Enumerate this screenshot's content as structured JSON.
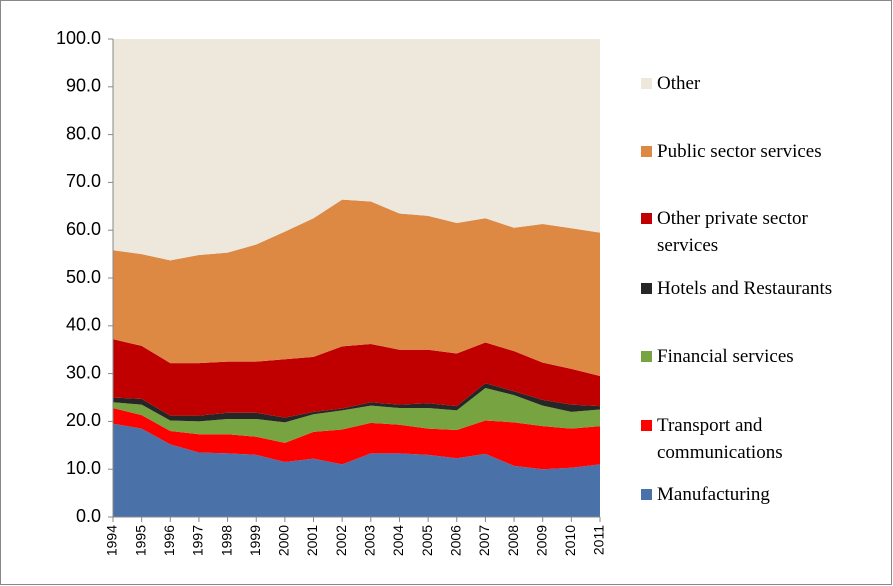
{
  "chart_data": {
    "type": "stacked-area",
    "categories": [
      "1994",
      "1995",
      "1996",
      "1997",
      "1998",
      "1999",
      "2000",
      "2001",
      "2002",
      "2003",
      "2004",
      "2005",
      "2006",
      "2007",
      "2008",
      "2009",
      "2010",
      "2011"
    ],
    "ylim": [
      0,
      100
    ],
    "yticks": [
      {
        "value": 0,
        "label": "0.0"
      },
      {
        "value": 10,
        "label": "10.0"
      },
      {
        "value": 20,
        "label": "20.0"
      },
      {
        "value": 30,
        "label": "30.0"
      },
      {
        "value": 40,
        "label": "40.0"
      },
      {
        "value": 50,
        "label": "50.0"
      },
      {
        "value": 60,
        "label": "60.0"
      },
      {
        "value": 70,
        "label": "70.0"
      },
      {
        "value": 80,
        "label": "80.0"
      },
      {
        "value": 90,
        "label": "90.0"
      },
      {
        "value": 100,
        "label": "100.0"
      }
    ],
    "series": [
      {
        "name": "Manufacturing",
        "color": "#4a72a8",
        "values": [
          19.5,
          18.5,
          15.2,
          13.5,
          13.3,
          13.0,
          11.5,
          12.2,
          11.0,
          13.3,
          13.3,
          13.0,
          12.3,
          13.2,
          10.7,
          10.0,
          10.3,
          11.0
        ]
      },
      {
        "name": "Transport and communications",
        "color": "#ff0000",
        "values": [
          3.3,
          2.8,
          2.8,
          3.8,
          4.0,
          3.8,
          4.0,
          5.6,
          7.3,
          6.4,
          6.0,
          5.5,
          5.9,
          7.0,
          9.1,
          9.0,
          8.2,
          8.0
        ]
      },
      {
        "name": "Financial services",
        "color": "#77a341",
        "values": [
          1.2,
          2.2,
          2.2,
          2.7,
          3.2,
          3.7,
          4.3,
          3.7,
          4.0,
          3.6,
          3.5,
          4.3,
          4.1,
          6.8,
          5.7,
          4.3,
          3.5,
          3.5
        ]
      },
      {
        "name": "Hotels and Restaurants",
        "color": "#262626",
        "values": [
          1.0,
          1.2,
          1.0,
          1.2,
          1.3,
          1.3,
          1.0,
          0.5,
          0.4,
          0.7,
          0.7,
          1.0,
          0.9,
          1.0,
          0.8,
          1.2,
          1.5,
          0.7
        ]
      },
      {
        "name": "Other private sector services",
        "color": "#c00000",
        "values": [
          12.2,
          11.1,
          11.0,
          11.0,
          10.7,
          10.7,
          12.2,
          11.5,
          13.0,
          12.2,
          11.5,
          11.2,
          11.0,
          8.5,
          8.4,
          7.8,
          7.5,
          6.3
        ]
      },
      {
        "name": "Public sector services",
        "color": "#dd8843",
        "values": [
          18.6,
          19.2,
          21.5,
          22.6,
          22.8,
          24.5,
          26.7,
          29.0,
          30.7,
          29.8,
          28.5,
          28.0,
          27.3,
          26.0,
          25.8,
          29.0,
          29.4,
          30.0
        ]
      },
      {
        "name": "Other",
        "color": "#ede7dc",
        "values": [
          44.2,
          45.0,
          46.3,
          45.2,
          44.7,
          43.0,
          40.3,
          37.5,
          33.6,
          34.0,
          36.5,
          37.0,
          38.5,
          37.5,
          39.5,
          38.7,
          39.6,
          40.5
        ]
      }
    ]
  }
}
